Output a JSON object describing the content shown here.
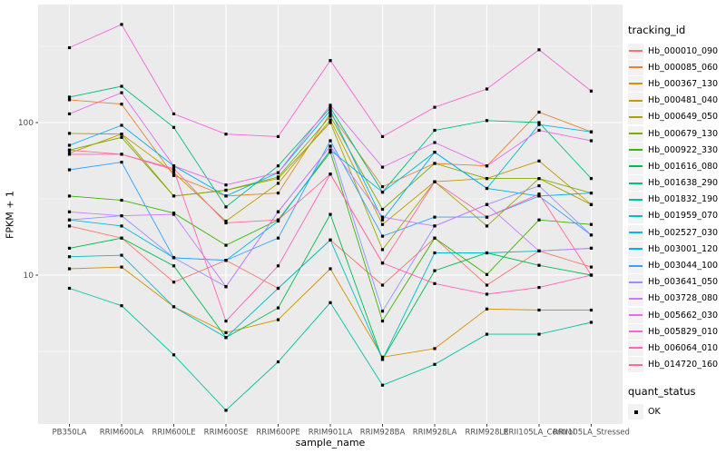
{
  "legend": {
    "tracking_title": "tracking_id",
    "quant_title": "quant_status",
    "quant_status_label": "OK"
  },
  "chart_data": {
    "type": "line",
    "title": "",
    "xlabel": "sample_name",
    "ylabel": "FPKM + 1",
    "y_scale": "log10",
    "ylim": [
      1.05,
      594
    ],
    "grid": true,
    "legend_position": "right",
    "panel_bg": "#EBEBEB",
    "grid_color": "#FFFFFF",
    "tick_label_color": "#4D4D4D",
    "point_color": "#000000",
    "point_shape": "filled-square",
    "y_major_ticks": [
      {
        "label": "100",
        "value": 100
      },
      {
        "label": "10",
        "value": 10
      }
    ],
    "y_minor_ticks": [
      316.23,
      31.62,
      3.16
    ],
    "categories": [
      "PB350LA",
      "RRIM600LA",
      "RRIM600LE",
      "RRIM600SE",
      "RRIM600PE",
      "RRIM901LA",
      "RRIM928BA",
      "RRIM928LA",
      "RRIM928LE",
      "RRII105LA_Control",
      "RRII105LA_Stressed"
    ],
    "series": [
      {
        "name": "Hb_000010_090",
        "color": "#F8766D",
        "values": [
          21,
          17.5,
          9,
          12.5,
          8.2,
          17,
          8.6,
          17.5,
          8.6,
          14.4,
          11.3
        ]
      },
      {
        "name": "Hb_000085_060",
        "color": "#EA8331",
        "values": [
          141,
          132,
          45,
          33,
          34.5,
          115,
          38,
          54,
          52,
          117,
          87
        ]
      },
      {
        "name": "Hb_000367_130",
        "color": "#D89000",
        "values": [
          11,
          11.3,
          6.2,
          4.2,
          5.1,
          11,
          2.9,
          3.3,
          6.0,
          5.9,
          5.9
        ]
      },
      {
        "name": "Hb_000481_040",
        "color": "#C09B00",
        "values": [
          63,
          84,
          47,
          22.6,
          40,
          104,
          21.5,
          41,
          43,
          56,
          29
        ]
      },
      {
        "name": "Hb_000649_050",
        "color": "#A3A500",
        "values": [
          85,
          84,
          33,
          36,
          43,
          100,
          14.7,
          41,
          21,
          43,
          29
        ]
      },
      {
        "name": "Hb_000679_130",
        "color": "#7CAE00",
        "values": [
          66,
          80,
          33,
          36,
          44,
          110,
          27,
          54,
          43,
          43,
          34.5
        ]
      },
      {
        "name": "Hb_000922_330",
        "color": "#39B600",
        "values": [
          33,
          31,
          25.5,
          15.7,
          23,
          64,
          5.0,
          17.5,
          10.1,
          23,
          21.5
        ]
      },
      {
        "name": "Hb_001616_080",
        "color": "#00BB4E",
        "values": [
          15,
          17.5,
          11.5,
          3.9,
          6.1,
          25,
          2.8,
          10.7,
          14,
          11.6,
          10
        ]
      },
      {
        "name": "Hb_001638_290",
        "color": "#00BF7D",
        "values": [
          147,
          173,
          93,
          28,
          52,
          125,
          35,
          89,
          103,
          100,
          43
        ]
      },
      {
        "name": "Hb_001832_190",
        "color": "#00C1A3",
        "values": [
          8.2,
          6.3,
          3.0,
          1.3,
          2.7,
          6.6,
          1.9,
          2.6,
          4.1,
          4.1,
          4.9
        ]
      },
      {
        "name": "Hb_001959_070",
        "color": "#00BFC4",
        "values": [
          13.2,
          13.5,
          6.2,
          3.9,
          8.2,
          17,
          2.8,
          14,
          14,
          14.4,
          15
        ]
      },
      {
        "name": "Hb_002527_030",
        "color": "#00BAE0",
        "values": [
          23,
          21,
          13,
          12.5,
          22.6,
          66,
          35,
          64,
          37,
          97,
          87
        ]
      },
      {
        "name": "Hb_003001_120",
        "color": "#00B0F6",
        "values": [
          71,
          96,
          52,
          33,
          47,
          120,
          23,
          64,
          37,
          33,
          34.5
        ]
      },
      {
        "name": "Hb_003044_100",
        "color": "#35A2FF",
        "values": [
          49,
          55,
          13,
          12.5,
          17.5,
          76,
          18,
          24,
          24,
          33,
          18.3
        ]
      },
      {
        "name": "Hb_003641_050",
        "color": "#9590FF",
        "values": [
          23,
          24.5,
          13,
          8.4,
          26,
          70,
          5.8,
          21,
          29,
          38.5,
          18.3
        ]
      },
      {
        "name": "Hb_003728_080",
        "color": "#C77CFF",
        "values": [
          26,
          24.5,
          25,
          8.4,
          26,
          70,
          24,
          21,
          29,
          14.4,
          15
        ]
      },
      {
        "name": "Hb_005662_030",
        "color": "#E76BF3",
        "values": [
          114,
          157,
          52,
          39,
          47,
          130,
          51,
          74,
          52,
          89,
          76
        ]
      },
      {
        "name": "Hb_005829_010",
        "color": "#FA62DB",
        "values": [
          310,
          440,
          114,
          84,
          81,
          255,
          81,
          126,
          166,
          300,
          161
        ]
      },
      {
        "name": "Hb_006064_010",
        "color": "#FF62BC",
        "values": [
          62,
          62,
          49,
          5.0,
          11.5,
          46,
          12,
          8.8,
          7.5,
          8.3,
          10
        ]
      },
      {
        "name": "Hb_014720_160",
        "color": "#FF6A98",
        "values": [
          66,
          62,
          50,
          22,
          23,
          46,
          12,
          41,
          24,
          34,
          10
        ]
      }
    ]
  }
}
